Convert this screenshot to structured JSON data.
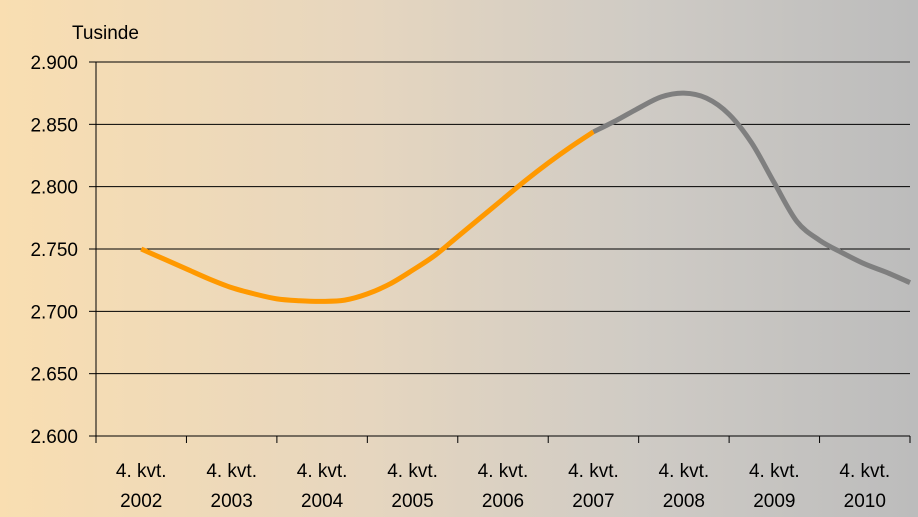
{
  "chart_data": {
    "type": "line",
    "ylabel": "Tusinde",
    "ylim": [
      2600,
      2900
    ],
    "yticks": [
      2600,
      2650,
      2700,
      2750,
      2800,
      2850,
      2900
    ],
    "ytick_labels": [
      "2.600",
      "2.650",
      "2.700",
      "2.750",
      "2.800",
      "2.850",
      "2.900"
    ],
    "categories": [
      [
        "4. kvt.",
        "2002"
      ],
      [
        "4. kvt.",
        "2003"
      ],
      [
        "4. kvt.",
        "2004"
      ],
      [
        "4. kvt.",
        "2005"
      ],
      [
        "4. kvt.",
        "2006"
      ],
      [
        "4. kvt.",
        "2007"
      ],
      [
        "4. kvt.",
        "2008"
      ],
      [
        "4. kvt.",
        "2009"
      ],
      [
        "4. kvt.",
        "2010"
      ]
    ],
    "grid": true,
    "series": [
      {
        "color": "#ff9900",
        "x": [
          0,
          0.25,
          0.5,
          0.75,
          1,
          1.25,
          1.5,
          1.75,
          2,
          2.25,
          2.5,
          2.75,
          3,
          3.25,
          3.5,
          3.75,
          4,
          4.25,
          4.5,
          4.75,
          5
        ],
        "values": [
          2750,
          2742,
          2734,
          2726,
          2719,
          2714,
          2710,
          2708.5,
          2708,
          2709,
          2714,
          2722,
          2733,
          2745,
          2760,
          2775,
          2790,
          2805,
          2819,
          2832,
          2844
        ]
      },
      {
        "color": "#7f7f7f",
        "x": [
          5,
          5.25,
          5.5,
          5.75,
          6,
          6.25,
          6.5,
          6.75,
          7,
          7.25,
          7.5,
          7.75,
          8,
          8.25,
          8.5
        ],
        "values": [
          2844,
          2853,
          2863,
          2872,
          2875,
          2871,
          2858,
          2835,
          2803,
          2772,
          2757,
          2747,
          2738,
          2731,
          2723
        ]
      }
    ]
  }
}
